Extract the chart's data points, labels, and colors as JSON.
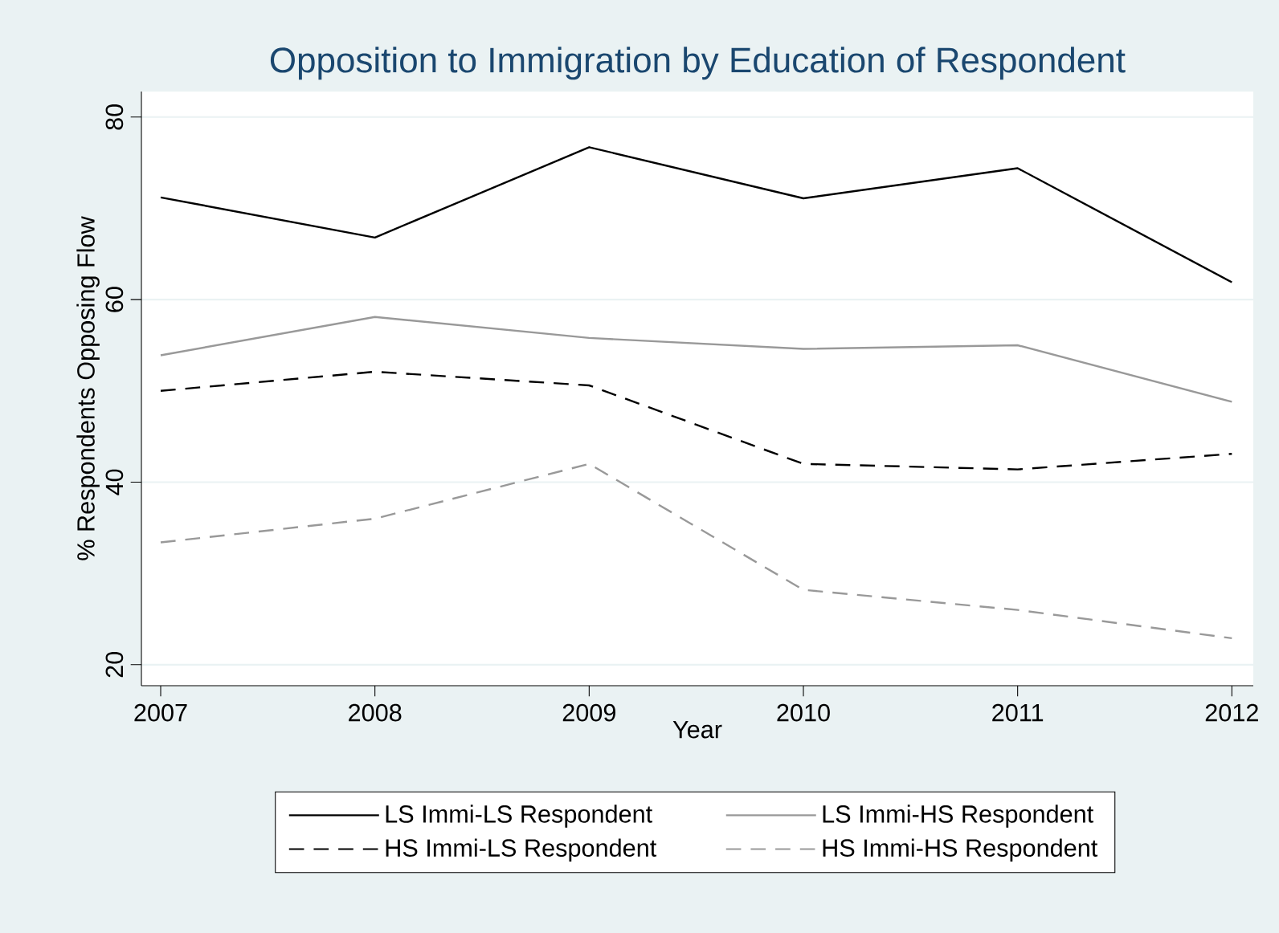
{
  "chart_data": {
    "type": "line",
    "title": "Opposition to Immigration by Education of Respondent",
    "xlabel": "Year",
    "ylabel": "% Respondents Opposing Flow",
    "x": [
      2007,
      2008,
      2009,
      2010,
      2011,
      2012
    ],
    "xlim": [
      2006.91,
      2012.1
    ],
    "ylim": [
      17.7,
      82.8
    ],
    "xticks": [
      2007,
      2008,
      2009,
      2010,
      2011,
      2012
    ],
    "yticks": [
      20,
      40,
      60,
      80
    ],
    "grid": "y",
    "legend": "bottom",
    "series": [
      {
        "name": "LS Immi-LS Respondent",
        "color": "#000000",
        "line_style": "solid",
        "values": [
          71.2,
          66.8,
          76.7,
          71.1,
          74.4,
          61.9
        ]
      },
      {
        "name": "LS Immi-HS Respondent",
        "color": "#999999",
        "line_style": "solid",
        "values": [
          53.9,
          58.1,
          55.8,
          54.6,
          55.0,
          48.8
        ]
      },
      {
        "name": "HS Immi-LS Respondent",
        "color": "#000000",
        "line_style": "dashed",
        "values": [
          50.0,
          52.1,
          50.6,
          42.0,
          41.4,
          43.1
        ]
      },
      {
        "name": "HS Immi-HS Respondent",
        "color": "#999999",
        "line_style": "dashed",
        "values": [
          33.4,
          36.0,
          42.0,
          28.2,
          26.0,
          22.9
        ]
      }
    ]
  }
}
